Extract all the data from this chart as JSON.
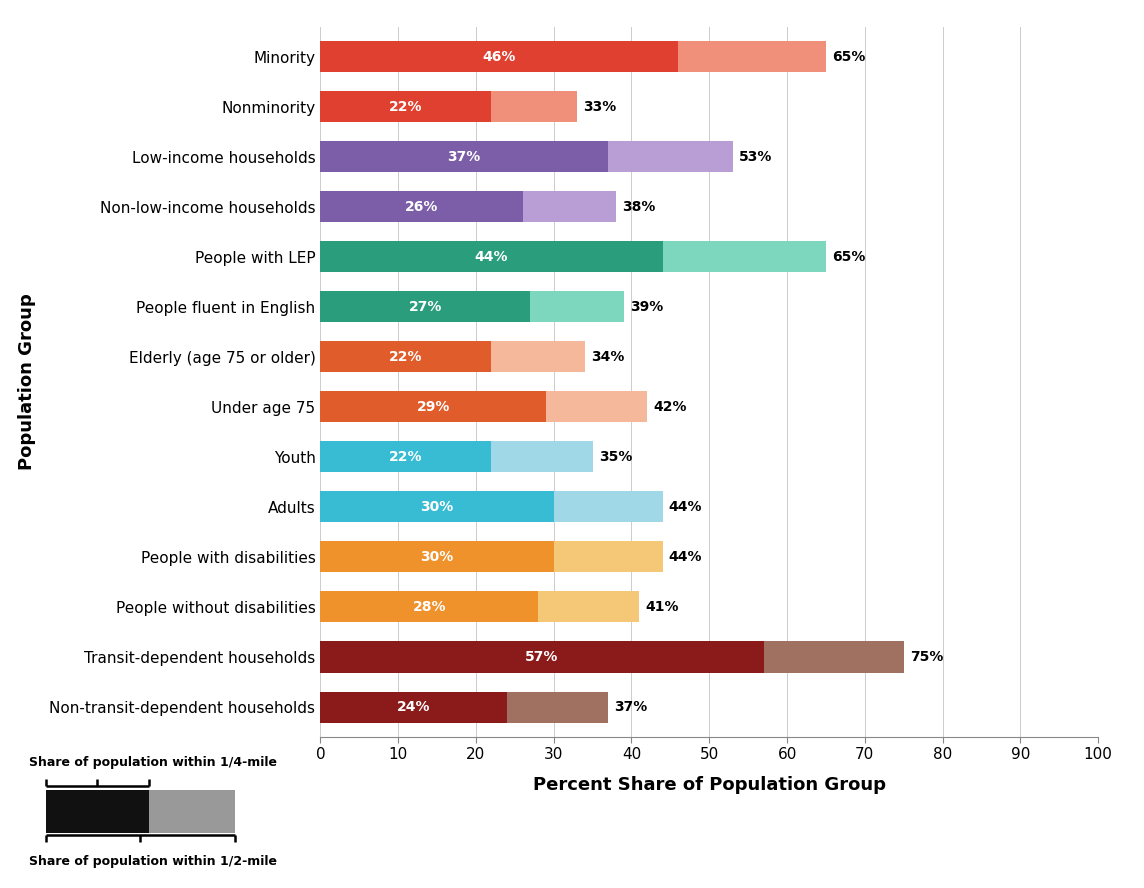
{
  "categories": [
    "Minority",
    "Nonminority",
    "Low-income households",
    "Non-low-income households",
    "People with LEP",
    "People fluent in English",
    "Elderly (age 75 or older)",
    "Under age 75",
    "Youth",
    "Adults",
    "People with disabilities",
    "People without disabilities",
    "Transit-dependent households",
    "Non-transit-dependent households"
  ],
  "quarter_mile": [
    46,
    22,
    37,
    26,
    44,
    27,
    22,
    29,
    22,
    30,
    30,
    28,
    57,
    24
  ],
  "half_mile": [
    65,
    33,
    53,
    38,
    65,
    39,
    34,
    42,
    35,
    44,
    44,
    41,
    75,
    37
  ],
  "quarter_colors": [
    "#e04030",
    "#e04030",
    "#7b5ea7",
    "#7b5ea7",
    "#2a9d7c",
    "#2a9d7c",
    "#e05c2a",
    "#e05c2a",
    "#38bcd4",
    "#38bcd4",
    "#f0922b",
    "#f0922b",
    "#8b1a1a",
    "#8b1a1a"
  ],
  "half_colors": [
    "#f0907a",
    "#f0907a",
    "#b89ed4",
    "#b89ed4",
    "#7dd6be",
    "#7dd6be",
    "#f5b89a",
    "#f5b89a",
    "#a0d8e8",
    "#a0d8e8",
    "#f5c878",
    "#f5c878",
    "#a07060",
    "#a07060"
  ],
  "xlabel": "Percent Share of Population Group",
  "ylabel": "Population Group",
  "xlim": [
    0,
    100
  ],
  "xticks": [
    0,
    10,
    20,
    30,
    40,
    50,
    60,
    70,
    80,
    90,
    100
  ],
  "legend_label_quarter": "Share of population within 1/4-mile",
  "legend_label_half": "Share of population within 1/2-mile",
  "background_color": "#ffffff"
}
